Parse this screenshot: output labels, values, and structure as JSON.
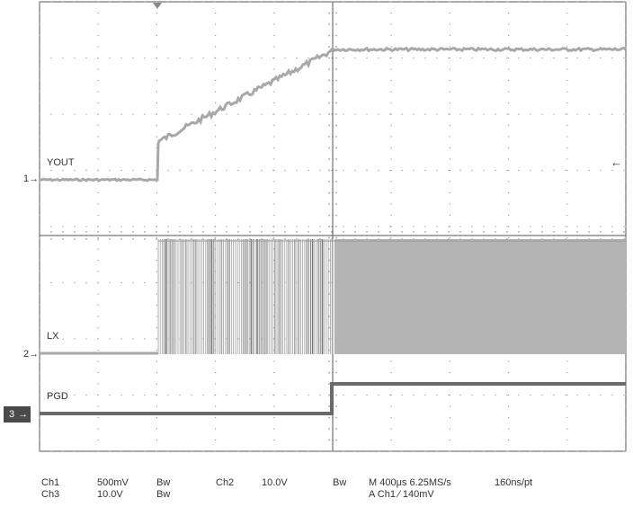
{
  "traces": {
    "yout_label": "YOUT",
    "lx_label": "LX",
    "pgd_label": "PGD"
  },
  "markers": {
    "ch1": "1",
    "ch2": "2",
    "ch3": "3",
    "ch1_arrow": "→",
    "ch2_arrow": "→",
    "ch3_arrow": "→",
    "trigger_level": "←"
  },
  "status": {
    "row1": {
      "ch1": "Ch1",
      "ch1_scale": "500mV",
      "ch1_bw": "Bw",
      "ch2": "Ch2",
      "ch2_scale": "10.0V",
      "ch2_bw": "Bw",
      "timebase": "M 400μs 6.25MS/s",
      "resolution": "160ns/pt"
    },
    "row2": {
      "ch3": "Ch3",
      "ch3_scale": "10.0V",
      "ch3_bw": "Bw",
      "trigger": "A  Ch1  ⁄  140mV"
    }
  },
  "colors": {
    "grid_dots": "#9a9a9a",
    "border": "#555555",
    "trace_light": "#a8a8a8",
    "trace_dark": "#6a6a6a"
  }
}
